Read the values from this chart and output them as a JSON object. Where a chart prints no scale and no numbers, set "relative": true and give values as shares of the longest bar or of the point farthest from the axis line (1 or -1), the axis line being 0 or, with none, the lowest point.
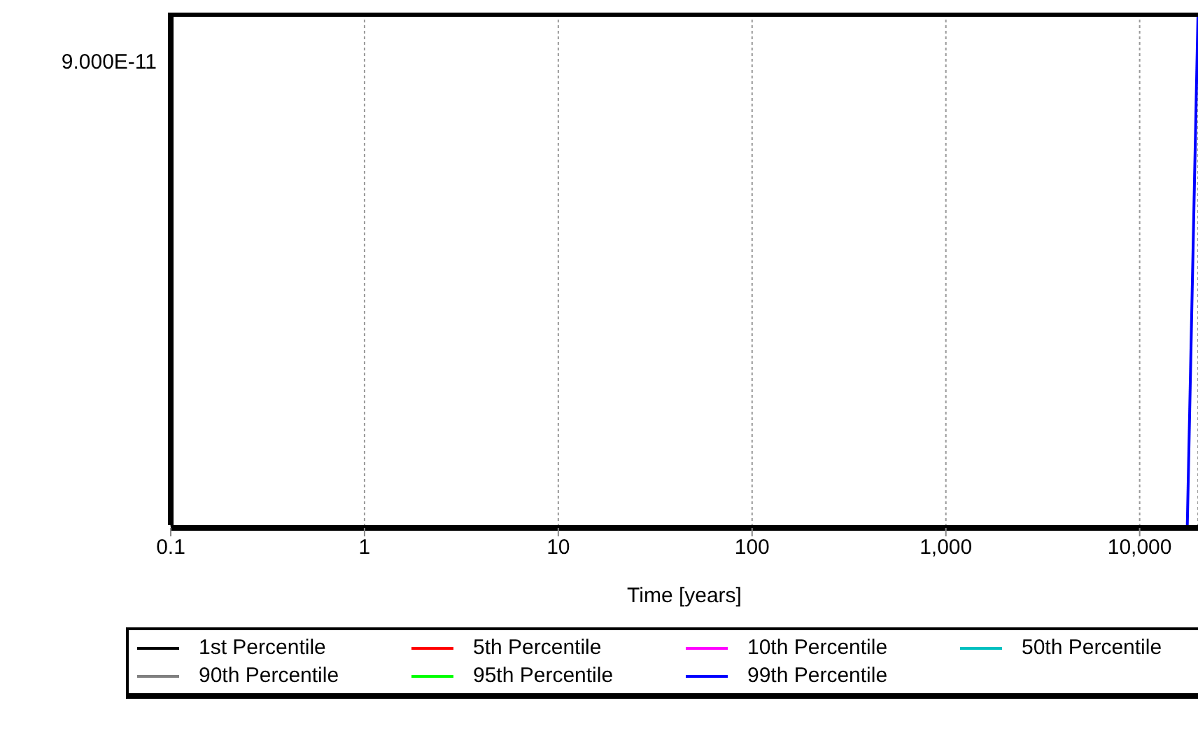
{
  "chart_data": {
    "type": "line",
    "xlabel": "Time [years]",
    "log": "x",
    "grid": "x",
    "legend": "bottom",
    "marker": "none",
    "line_style": "solid",
    "xlim": [
      0.1,
      20000
    ],
    "xticks": [
      0.1,
      1,
      10,
      100,
      {
        "value": 1000,
        "label": "1,000"
      },
      {
        "value": 10000,
        "label": "10,000"
      }
    ],
    "relative": true,
    "annotations": [
      "9.000E-11"
    ],
    "x": [
      17600,
      20000
    ],
    "series": [
      {
        "name": "1st Percentile",
        "color": "#000000",
        "values": [
          null,
          null
        ]
      },
      {
        "name": "5th Percentile",
        "color": "#ff0000",
        "values": [
          null,
          null
        ]
      },
      {
        "name": "10th Percentile",
        "color": "#ff00ff",
        "values": [
          null,
          null
        ]
      },
      {
        "name": "50th Percentile",
        "color": "#00c0c0",
        "values": [
          null,
          null
        ]
      },
      {
        "name": "90th Percentile",
        "color": "#808080",
        "values": [
          null,
          null
        ]
      },
      {
        "name": "95th Percentile",
        "color": "#00ff00",
        "values": [
          null,
          null
        ]
      },
      {
        "name": "99th Percentile",
        "color": "#0000ff",
        "values": [
          0,
          1
        ]
      }
    ]
  }
}
